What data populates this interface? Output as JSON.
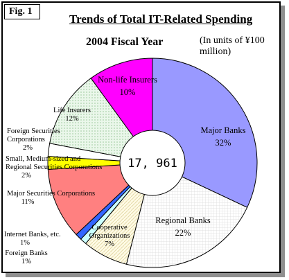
{
  "figure_label": "Fig. 1",
  "chart_data": {
    "type": "pie",
    "title": "Trends of Total IT-Related Spending",
    "subtitle": "2004 Fiscal Year",
    "units_note": "(In units of ¥100 million)",
    "total": "17, 961",
    "slices": [
      {
        "name": "Major Banks",
        "value": 32,
        "label": "32%",
        "color": "#9999ff"
      },
      {
        "name": "Regional Banks",
        "value": 22,
        "label": "22%",
        "color": "#ffffff"
      },
      {
        "name": "Cooperative Organizations",
        "value": 7,
        "label": "7%",
        "color": "#fffbe6"
      },
      {
        "name": "Foreign Banks",
        "value": 1,
        "label": "1%",
        "color": "#ccffff"
      },
      {
        "name": "Internet Banks, etc.",
        "value": 1,
        "label": "1%",
        "color": "#3366ff"
      },
      {
        "name": "Major Securities Corporations",
        "value": 11,
        "label": "11%",
        "color": "#ff8080"
      },
      {
        "name": "Small, Medium-sized and Regional Securities Corporations",
        "value": 2,
        "label": "2%",
        "color": "#ffff00"
      },
      {
        "name": "Foreign Securities Corporations",
        "value": 2,
        "label": "2%",
        "color": "#ffffff"
      },
      {
        "name": "Life Insurers",
        "value": 12,
        "label": "12%",
        "color": "#e6f5e6"
      },
      {
        "name": "Non-life Insurers",
        "value": 10,
        "label": "10%",
        "color": "#ff00ff"
      }
    ]
  }
}
